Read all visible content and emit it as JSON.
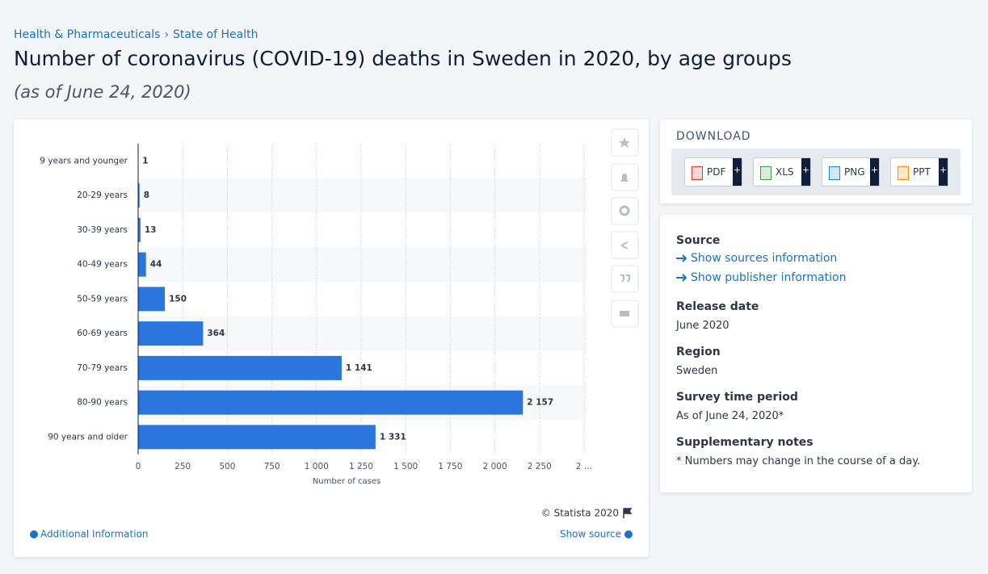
{
  "breadcrumb": [
    "Health & Pharmaceuticals",
    "State of Health"
  ],
  "breadcrumb_separator": "›",
  "chart_data": {
    "type": "bar",
    "orientation": "horizontal",
    "title": "Number of coronavirus (COVID-19) deaths in Sweden in 2020, by age groups",
    "subtitle": "(as of June 24, 2020)",
    "categories": [
      "9 years and younger",
      "20-29 years",
      "30-39 years",
      "40-49 years",
      "50-59 years",
      "60-69 years",
      "70-79 years",
      "80-90 years",
      "90 years and older"
    ],
    "values": [
      1,
      8,
      13,
      44,
      150,
      364,
      1141,
      2157,
      1331
    ],
    "value_labels": [
      "1",
      "8",
      "13",
      "44",
      "150",
      "364",
      "1 141",
      "2 157",
      "1 331"
    ],
    "color": "#2a76dd",
    "xlabel": "Number of cases",
    "xlim": [
      0,
      2500
    ],
    "xticks": [
      0,
      250,
      500,
      750,
      {
        "value": 1000,
        "label": "1 000"
      },
      {
        "value": 1250,
        "label": "1 250"
      },
      {
        "value": 1500,
        "label": "1 500"
      },
      {
        "value": 1750,
        "label": "1 750"
      },
      {
        "value": 2000,
        "label": "2 000"
      },
      {
        "value": 2250,
        "label": "2 250"
      },
      {
        "value": 2500,
        "label": "2 …"
      }
    ],
    "grid": true
  },
  "credit": "© Statista 2020",
  "additional_info": "Additional Information",
  "show_source": "Show source",
  "download": {
    "title": "DOWNLOAD",
    "buttons": [
      "PDF",
      "XLS",
      "PNG",
      "PPT"
    ],
    "badge": "+"
  },
  "info": [
    {
      "heading": "Source",
      "links": [
        "Show sources information",
        "Show publisher information"
      ]
    },
    {
      "heading": "Release date",
      "text": "June 2020"
    },
    {
      "heading": "Region",
      "text": "Sweden"
    },
    {
      "heading": "Survey time period",
      "text": "As of June 24, 2020*"
    },
    {
      "heading": "Supplementary notes",
      "text": "* Numbers may change in the course of a day."
    }
  ]
}
